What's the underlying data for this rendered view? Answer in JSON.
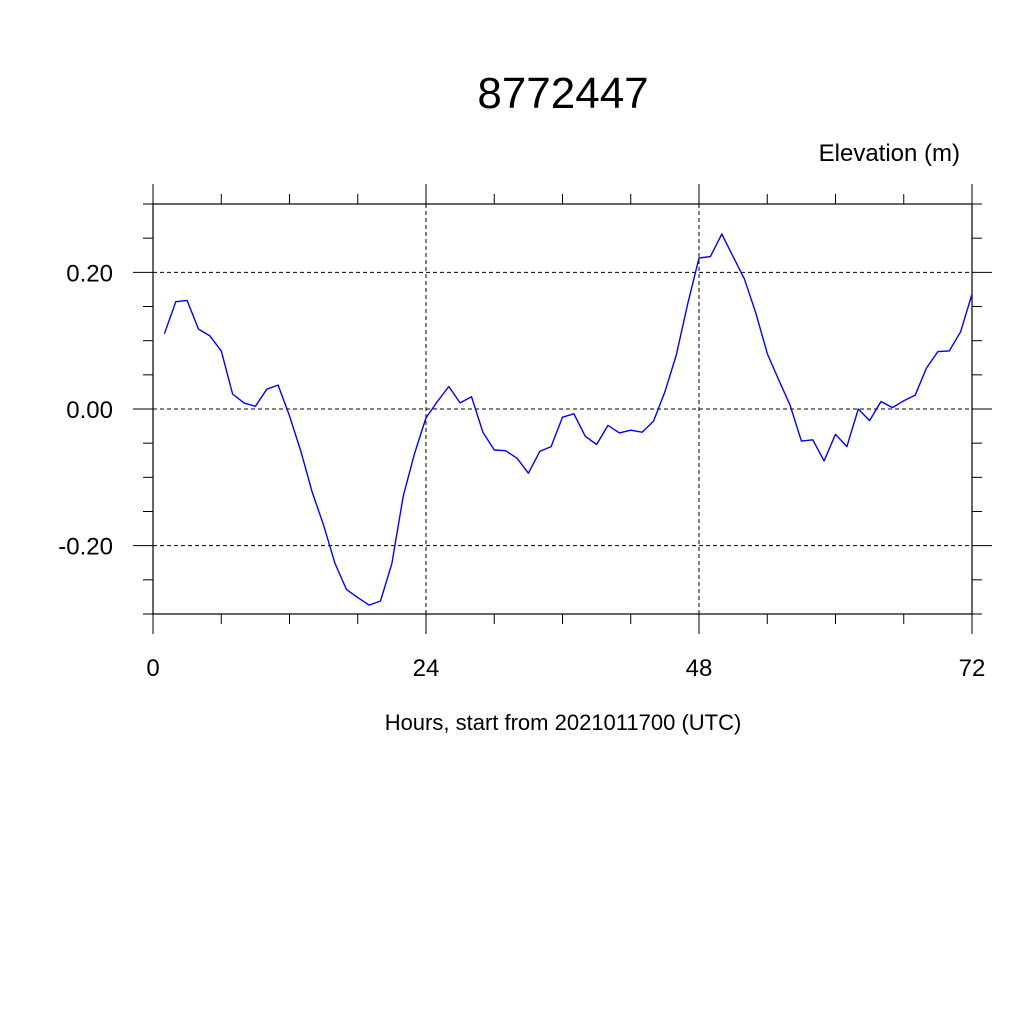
{
  "chart_data": {
    "type": "line",
    "title": "8772447",
    "units_label": "Elevation (m)",
    "xlabel": "Hours, start from 2021011700 (UTC)",
    "ylabel": "",
    "xlim": [
      0,
      72
    ],
    "ylim": [
      -0.3,
      0.3
    ],
    "x_major_ticks": [
      0,
      24,
      48,
      72
    ],
    "x_tick_labels": [
      "0",
      "24",
      "48",
      "72"
    ],
    "x_minor_step": 6,
    "y_major_ticks": [
      0.2,
      0.0,
      -0.2
    ],
    "y_tick_labels": [
      "0.20",
      "0.00",
      "-0.20"
    ],
    "y_minor_step": 0.05,
    "grid": true,
    "colors": {
      "series": "#0000ff",
      "axis": "#000000",
      "grid": "#000000"
    },
    "series": [
      {
        "x": [
          1,
          2,
          3,
          4,
          5,
          6,
          7,
          8,
          9,
          10,
          11,
          12,
          13,
          14,
          15,
          16,
          17,
          18,
          19,
          20,
          21,
          22,
          23,
          24,
          25,
          26,
          27,
          28,
          29,
          30,
          31,
          32,
          33,
          34,
          35,
          36,
          37,
          38,
          39,
          40,
          41,
          42,
          43,
          44,
          45,
          46,
          47,
          48,
          49,
          50,
          51,
          52,
          53,
          54,
          55,
          56,
          57,
          58,
          59,
          60,
          61,
          62,
          63,
          64,
          65,
          66,
          67,
          68,
          69,
          70,
          71,
          72
        ],
        "values": [
          0.11,
          0.157,
          0.159,
          0.117,
          0.107,
          0.085,
          0.022,
          0.009,
          0.004,
          0.029,
          0.035,
          -0.01,
          -0.062,
          -0.122,
          -0.17,
          -0.226,
          -0.264,
          -0.276,
          -0.287,
          -0.281,
          -0.226,
          -0.127,
          -0.065,
          -0.013,
          0.011,
          0.033,
          0.009,
          0.018,
          -0.034,
          -0.06,
          -0.061,
          -0.072,
          -0.094,
          -0.062,
          -0.055,
          -0.012,
          -0.007,
          -0.04,
          -0.052,
          -0.024,
          -0.035,
          -0.031,
          -0.034,
          -0.018,
          0.025,
          0.079,
          0.153,
          0.221,
          0.223,
          0.256,
          0.223,
          0.19,
          0.14,
          0.081,
          0.043,
          0.006,
          -0.047,
          -0.045,
          -0.076,
          -0.037,
          -0.055,
          0.0,
          -0.017,
          0.011,
          0.002,
          0.012,
          0.02,
          0.06,
          0.084,
          0.085,
          0.113,
          0.168
        ]
      }
    ]
  }
}
